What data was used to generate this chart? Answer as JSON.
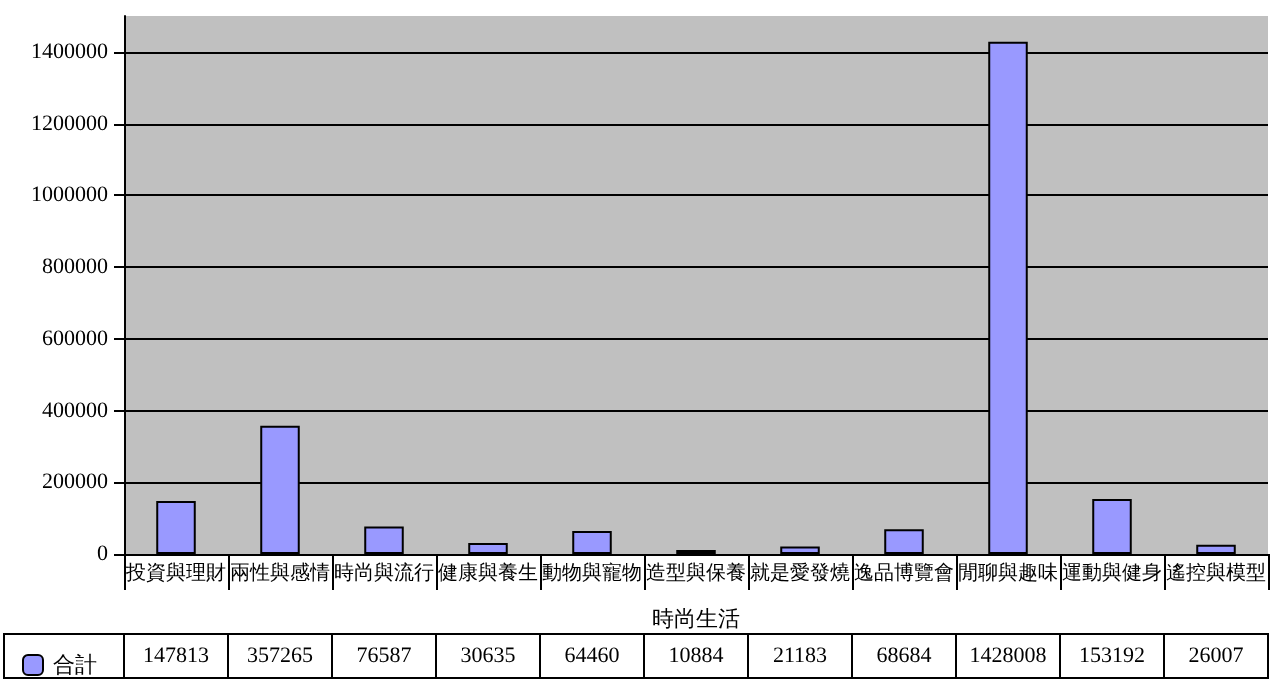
{
  "chart_data": {
    "type": "bar",
    "xlabel": "時尚生活",
    "categories": [
      "投資與理財",
      "兩性與感情",
      "時尚與流行",
      "健康與養生",
      "動物與寵物",
      "造型與保養",
      "就是愛發燒",
      "逸品博覽會",
      "閒聊與趣味",
      "運動與健身",
      "遙控與模型"
    ],
    "series": [
      {
        "name": "合計",
        "color": "#9999ff",
        "values": [
          147813,
          357265,
          76587,
          30635,
          64460,
          10884,
          21183,
          68684,
          1428008,
          153192,
          26007
        ]
      }
    ],
    "ylim": [
      0,
      1500000
    ],
    "yticks": [
      0,
      200000,
      400000,
      600000,
      800000,
      1000000,
      1200000,
      1400000
    ],
    "grid": "y",
    "legend": "bottom left",
    "data_labels": true
  }
}
